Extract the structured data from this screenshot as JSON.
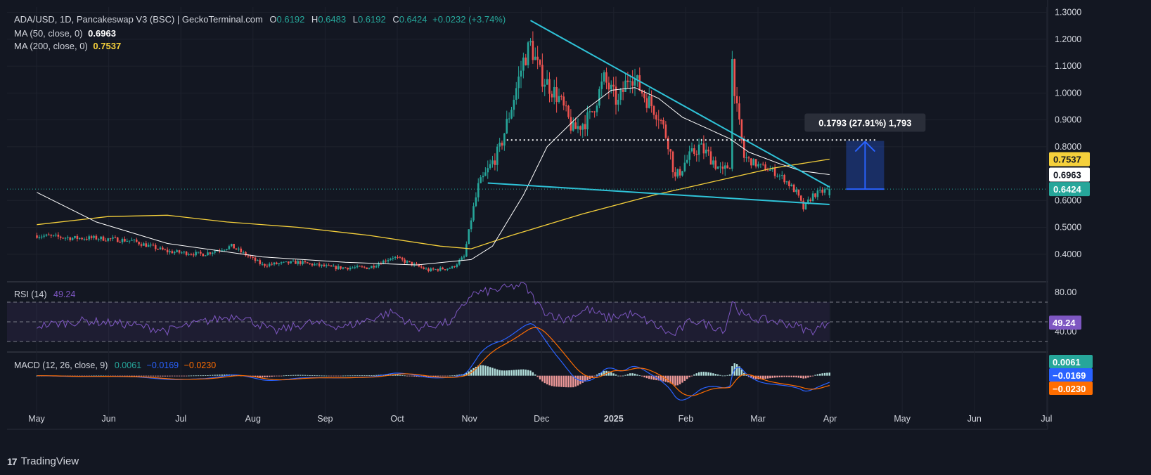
{
  "header": {
    "symbol": "ADA/USD, 1D, Pancakeswap V3 (BSC) | GeckoTerminal.com",
    "o_label": "O",
    "o": "0.6192",
    "h_label": "H",
    "h": "0.6483",
    "l_label": "L",
    "l": "0.6192",
    "c_label": "C",
    "c": "0.6424",
    "change": "+0.0232 (+3.74%)",
    "ma50_label": "MA (50, close, 0)",
    "ma50_value": "0.6963",
    "ma200_label": "MA (200, close, 0)",
    "ma200_value": "0.7537"
  },
  "rsi": {
    "label": "RSI (14)",
    "value": "49.24"
  },
  "macd": {
    "label": "MACD (12, 26, close, 9)",
    "hist": "0.0061",
    "macd": "−0.0169",
    "signal": "−0.0230"
  },
  "measure": {
    "label": "0.1793 (27.91%) 1,793"
  },
  "branding": {
    "name": "TradingView"
  },
  "colors": {
    "bg": "#131722",
    "up": "#26a69a",
    "down": "#ef5350",
    "ma50": "#ffffff",
    "ma200": "#f5d03b",
    "trend": "#2fc3d8",
    "rsi": "#7e57c2",
    "macd": "#2962ff",
    "signal": "#ff6d00",
    "measure": "#2962ff"
  },
  "chart_data": {
    "type": "candlestick",
    "title": "ADA/USD, 1D, Pancakeswap V3 (BSC)",
    "x_labels": [
      "May",
      "Jun",
      "Jul",
      "Aug",
      "Sep",
      "Oct",
      "Nov",
      "Dec",
      "2025",
      "Feb",
      "Mar",
      "Apr",
      "May",
      "Jun",
      "Jul"
    ],
    "price_ticks": [
      "1.3000",
      "1.2000",
      "1.1000",
      "1.0000",
      "0.9000",
      "0.8000",
      "0.6000",
      "0.5000",
      "0.4000"
    ],
    "price_range": [
      0.3,
      1.32
    ],
    "price_path": [
      [
        0,
        0.47
      ],
      [
        15,
        0.46
      ],
      [
        25,
        0.46
      ],
      [
        40,
        0.45
      ],
      [
        55,
        0.41
      ],
      [
        70,
        0.4
      ],
      [
        82,
        0.43
      ],
      [
        95,
        0.36
      ],
      [
        110,
        0.37
      ],
      [
        125,
        0.35
      ],
      [
        140,
        0.35
      ],
      [
        150,
        0.39
      ],
      [
        165,
        0.34
      ],
      [
        175,
        0.35
      ],
      [
        180,
        0.39
      ],
      [
        183,
        0.53
      ],
      [
        186,
        0.65
      ],
      [
        190,
        0.71
      ],
      [
        195,
        0.79
      ],
      [
        200,
        0.95
      ],
      [
        205,
        1.12
      ],
      [
        208,
        1.18
      ],
      [
        212,
        1.07
      ],
      [
        220,
        0.98
      ],
      [
        226,
        0.86
      ],
      [
        233,
        0.91
      ],
      [
        239,
        1.05
      ],
      [
        245,
        0.96
      ],
      [
        250,
        1.08
      ],
      [
        256,
        0.99
      ],
      [
        262,
        0.92
      ],
      [
        266,
        0.82
      ],
      [
        269,
        0.68
      ],
      [
        273,
        0.74
      ],
      [
        279,
        0.8
      ],
      [
        284,
        0.76
      ],
      [
        289,
        0.7
      ],
      [
        292,
        0.74
      ],
      [
        293,
        1.12
      ],
      [
        295,
        0.93
      ],
      [
        298,
        0.76
      ],
      [
        304,
        0.73
      ],
      [
        310,
        0.71
      ],
      [
        315,
        0.68
      ],
      [
        320,
        0.63
      ],
      [
        323,
        0.57
      ],
      [
        327,
        0.62
      ],
      [
        334,
        0.6424
      ]
    ],
    "ma50_path": [
      [
        0,
        0.63
      ],
      [
        25,
        0.52
      ],
      [
        55,
        0.44
      ],
      [
        95,
        0.39
      ],
      [
        130,
        0.37
      ],
      [
        160,
        0.36
      ],
      [
        183,
        0.38
      ],
      [
        192,
        0.43
      ],
      [
        205,
        0.62
      ],
      [
        215,
        0.8
      ],
      [
        230,
        0.93
      ],
      [
        242,
        1.01
      ],
      [
        252,
        1.02
      ],
      [
        262,
        0.98
      ],
      [
        272,
        0.91
      ],
      [
        282,
        0.87
      ],
      [
        292,
        0.83
      ],
      [
        300,
        0.78
      ],
      [
        312,
        0.74
      ],
      [
        322,
        0.71
      ],
      [
        334,
        0.6963
      ]
    ],
    "ma200_path": [
      [
        0,
        0.51
      ],
      [
        30,
        0.54
      ],
      [
        55,
        0.545
      ],
      [
        80,
        0.52
      ],
      [
        110,
        0.5
      ],
      [
        140,
        0.47
      ],
      [
        170,
        0.43
      ],
      [
        183,
        0.42
      ],
      [
        200,
        0.47
      ],
      [
        230,
        0.55
      ],
      [
        260,
        0.62
      ],
      [
        285,
        0.67
      ],
      [
        310,
        0.72
      ],
      [
        334,
        0.7537
      ]
    ],
    "ma50_value": 0.6963,
    "ma200_value": 0.7537,
    "last_close": 0.6424,
    "trendline_upper": [
      [
        208,
        1.27
      ],
      [
        334,
        0.65
      ]
    ],
    "trendline_lower": [
      [
        190,
        0.665
      ],
      [
        334,
        0.585
      ]
    ],
    "resistance_level": 0.825,
    "measure_range": [
      0.6424,
      0.8217
    ],
    "rsi": {
      "range": [
        20,
        90
      ],
      "ticks": [
        "80.00",
        "40.00"
      ],
      "upper_band": 70,
      "lower_band": 30,
      "mid": 50,
      "path": [
        [
          0,
          46
        ],
        [
          20,
          51
        ],
        [
          40,
          47
        ],
        [
          55,
          41
        ],
        [
          70,
          50
        ],
        [
          85,
          57
        ],
        [
          100,
          40
        ],
        [
          115,
          49
        ],
        [
          130,
          45
        ],
        [
          150,
          60
        ],
        [
          160,
          44
        ],
        [
          175,
          50
        ],
        [
          183,
          78
        ],
        [
          195,
          83
        ],
        [
          205,
          88
        ],
        [
          213,
          62
        ],
        [
          222,
          52
        ],
        [
          232,
          63
        ],
        [
          240,
          54
        ],
        [
          250,
          58
        ],
        [
          258,
          50
        ],
        [
          268,
          36
        ],
        [
          276,
          52
        ],
        [
          290,
          42
        ],
        [
          293,
          71
        ],
        [
          298,
          55
        ],
        [
          310,
          51
        ],
        [
          320,
          46
        ],
        [
          326,
          40
        ],
        [
          334,
          49.24
        ]
      ],
      "value": 49.24
    },
    "macd": {
      "range": [
        -0.11,
        0.07
      ],
      "hist_value": 0.0061,
      "macd_value": -0.0169,
      "signal_value": -0.023
    }
  }
}
